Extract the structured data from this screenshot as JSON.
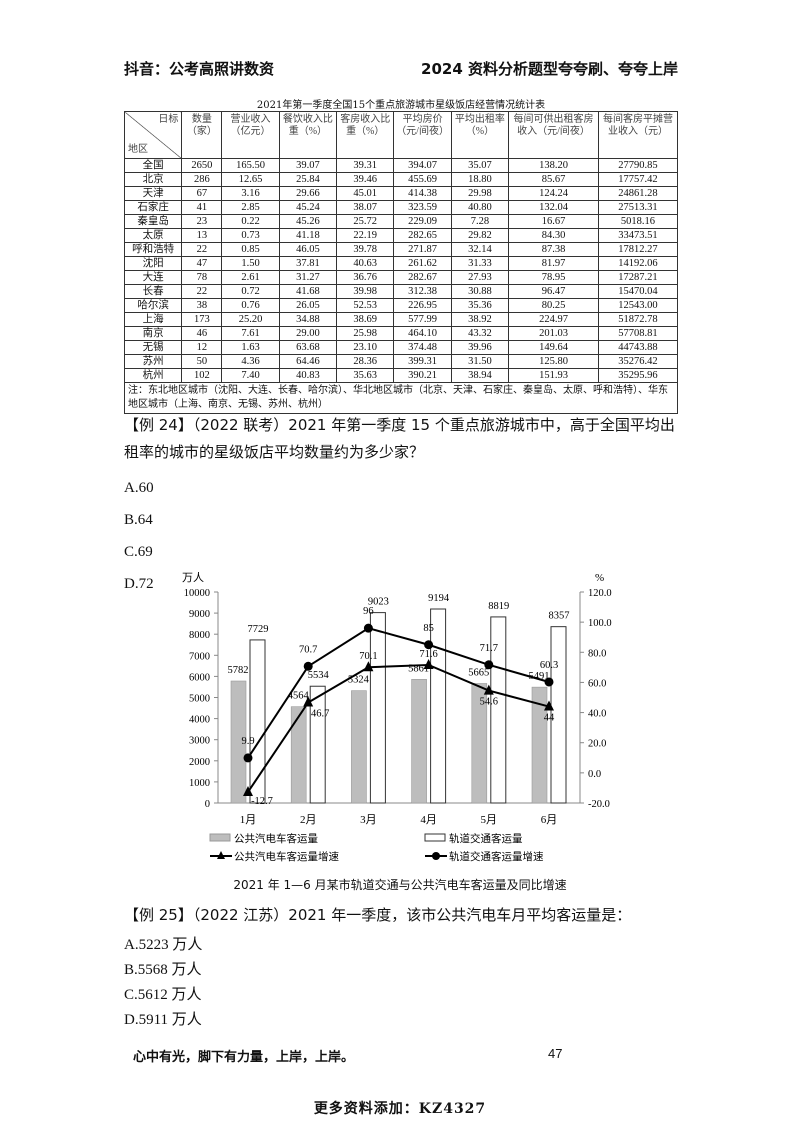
{
  "header": {
    "left": "抖音：公考高照讲数资",
    "right": "2024 资料分析题型夸夸刷、夸夸上岸"
  },
  "table": {
    "title": "2021年第一季度全国15个重点旅游城市星级饭店经营情况统计表",
    "corner_top": "日标",
    "corner_bottom": "地区",
    "headers": [
      "数量（家）",
      "营业收入（亿元）",
      "餐饮收入比重（%）",
      "客房收入比重（%）",
      "平均房价（元/间夜）",
      "平均出租率（%）",
      "每间可供出租客房收入（元/间夜）",
      "每间客房平摊营业收入（元）"
    ],
    "rows": [
      [
        "全国",
        "2650",
        "165.50",
        "39.07",
        "39.31",
        "394.07",
        "35.07",
        "138.20",
        "27790.85"
      ],
      [
        "北京",
        "286",
        "12.65",
        "25.84",
        "39.46",
        "455.69",
        "18.80",
        "85.67",
        "17757.42"
      ],
      [
        "天津",
        "67",
        "3.16",
        "29.66",
        "45.01",
        "414.38",
        "29.98",
        "124.24",
        "24861.28"
      ],
      [
        "石家庄",
        "41",
        "2.85",
        "45.24",
        "38.07",
        "323.59",
        "40.80",
        "132.04",
        "27513.31"
      ],
      [
        "秦皇岛",
        "23",
        "0.22",
        "45.26",
        "25.72",
        "229.09",
        "7.28",
        "16.67",
        "5018.16"
      ],
      [
        "太原",
        "13",
        "0.73",
        "41.18",
        "22.19",
        "282.65",
        "29.82",
        "84.30",
        "33473.51"
      ],
      [
        "呼和浩特",
        "22",
        "0.85",
        "46.05",
        "39.78",
        "271.87",
        "32.14",
        "87.38",
        "17812.27"
      ],
      [
        "沈阳",
        "47",
        "1.50",
        "37.81",
        "40.63",
        "261.62",
        "31.33",
        "81.97",
        "14192.06"
      ],
      [
        "大连",
        "78",
        "2.61",
        "31.27",
        "36.76",
        "282.67",
        "27.93",
        "78.95",
        "17287.21"
      ],
      [
        "长春",
        "22",
        "0.72",
        "41.68",
        "39.98",
        "312.38",
        "30.88",
        "96.47",
        "15470.04"
      ],
      [
        "哈尔滨",
        "38",
        "0.76",
        "26.05",
        "52.53",
        "226.95",
        "35.36",
        "80.25",
        "12543.00"
      ],
      [
        "上海",
        "173",
        "25.20",
        "34.88",
        "38.69",
        "577.99",
        "38.92",
        "224.97",
        "51872.78"
      ],
      [
        "南京",
        "46",
        "7.61",
        "29.00",
        "25.98",
        "464.10",
        "43.32",
        "201.03",
        "57708.81"
      ],
      [
        "无锡",
        "12",
        "1.63",
        "63.68",
        "23.10",
        "374.48",
        "39.96",
        "149.64",
        "44743.88"
      ],
      [
        "苏州",
        "50",
        "4.36",
        "64.46",
        "28.36",
        "399.31",
        "31.50",
        "125.80",
        "35276.42"
      ],
      [
        "杭州",
        "102",
        "7.40",
        "40.83",
        "35.63",
        "390.21",
        "38.94",
        "151.93",
        "35295.96"
      ]
    ],
    "note": "注：东北地区城市（沈阳、大连、长春、哈尔滨）、华北地区城市（北京、天津、石家庄、秦皇岛、太原、呼和浩特）、华东地区城市（上海、南京、无锡、苏州、杭州）"
  },
  "q24": {
    "stem": "【例 24】（2022 联考）2021 年第一季度 15 个重点旅游城市中，高于全国平均出租率的城市的星级饭店平均数量约为多少家？",
    "options": [
      "A.60",
      "B.64",
      "C.69",
      "D.72"
    ]
  },
  "chart_data": {
    "type": "bar+line",
    "title": "2021 年 1—6 月某市轨道交通与公共汽电车客运量及同比增速",
    "categories": [
      "1月",
      "2月",
      "3月",
      "4月",
      "5月",
      "6月"
    ],
    "y_left": {
      "label": "万人",
      "range": [
        0,
        10000
      ],
      "ticks": [
        "0",
        "1000",
        "2000",
        "3000",
        "4000",
        "5000",
        "6000",
        "7000",
        "8000",
        "9000",
        "10000"
      ]
    },
    "y_right": {
      "label": "%",
      "range": [
        -20,
        120
      ],
      "ticks": [
        "-20.0",
        "0.0",
        "20.0",
        "40.0",
        "60.0",
        "80.0",
        "100.0",
        "120.0"
      ]
    },
    "series": [
      {
        "name": "公共汽电车客运量",
        "type": "bar",
        "axis": "left",
        "color": "#bdbdbd",
        "values": [
          5782,
          4564,
          5324,
          5861,
          5665,
          5491
        ]
      },
      {
        "name": "轨道交通客运量",
        "type": "bar",
        "axis": "left",
        "color": "#ffffff",
        "values": [
          7729,
          5534,
          9023,
          9194,
          8819,
          8357
        ]
      },
      {
        "name": "公共汽电车客运量增速",
        "type": "line",
        "marker": "triangle",
        "axis": "right",
        "values": [
          -12.7,
          46.7,
          70.1,
          71.6,
          54.6,
          44.0
        ]
      },
      {
        "name": "轨道交通客运量增速",
        "type": "line",
        "marker": "circle",
        "axis": "right",
        "values": [
          9.9,
          70.7,
          96.0,
          85.0,
          71.7,
          60.3
        ]
      }
    ],
    "legend": "bottom"
  },
  "q25": {
    "stem": "【例 25】（2022 江苏）2021 年一季度，该市公共汽电车月平均客运量是：",
    "options": [
      "A.5223 万人",
      "B.5568 万人",
      "C.5612 万人",
      "D.5911 万人"
    ]
  },
  "footer": {
    "motto": "心中有光，脚下有力量，上岸，上岸。",
    "page": "47",
    "watermark": "更多资料添加：KZ4327"
  }
}
